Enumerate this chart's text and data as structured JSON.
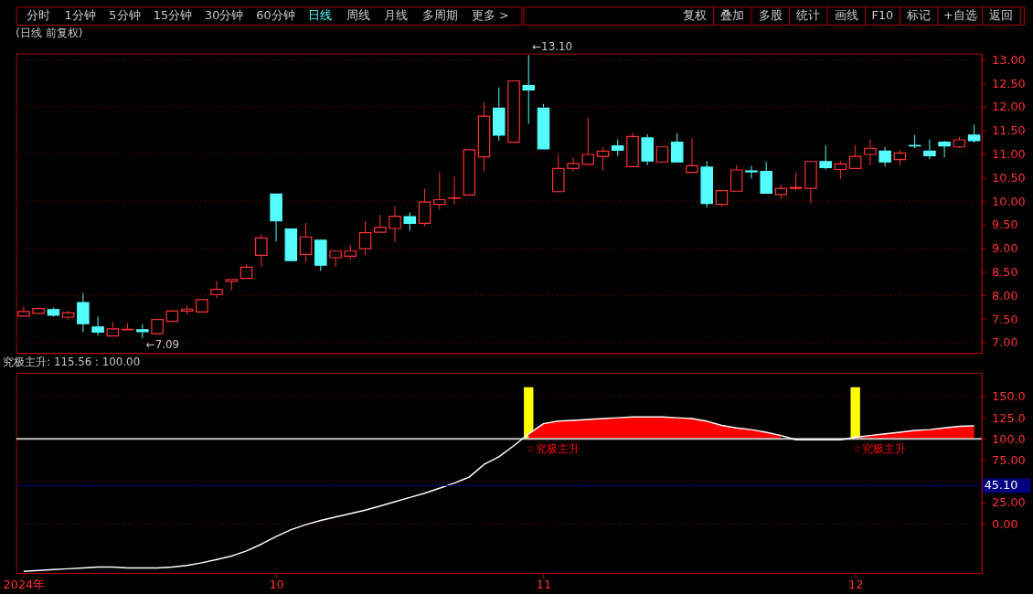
{
  "chart_data": [
    {
      "type": "other",
      "categories": [
        "分时",
        "1分钟",
        "5分钟",
        "15分钟",
        "30分钟",
        "60分钟",
        "日线",
        "周线",
        "月线",
        "多周期",
        "更多 >"
      ],
      "colors": [
        "#c8c8c8",
        "#c8c8c8",
        "#c8c8c8",
        "#c8c8c8",
        "#c8c8c8",
        "#c8c8c8",
        "#54fcfc",
        "#c8c8c8",
        "#c8c8c8",
        "#c8c8c8",
        "#c8c8c8"
      ]
    },
    {
      "type": "other",
      "categories": [
        "复权",
        "叠加",
        "多股",
        "统计",
        "画线",
        "F10",
        "标记",
        "+自选",
        "返回"
      ],
      "colors": [
        "#c8c8c8",
        "#c8c8c8",
        "#c8c8c8",
        "#c8c8c8",
        "#c8c8c8",
        "#c8c8c8",
        "#c8c8c8",
        "#c8c8c8",
        "#c8c8c8"
      ]
    },
    {
      "type": "candlestick",
      "title": "(日线 前复权)",
      "ohlc": [
        [
          7.56,
          7.77,
          7.56,
          7.66
        ],
        [
          7.62,
          7.74,
          7.62,
          7.72
        ],
        [
          7.7,
          7.74,
          7.55,
          7.58
        ],
        [
          7.54,
          7.67,
          7.48,
          7.63
        ],
        [
          7.85,
          8.05,
          7.22,
          7.4
        ],
        [
          7.33,
          7.55,
          7.15,
          7.22
        ],
        [
          7.14,
          7.44,
          7.14,
          7.29
        ],
        [
          7.27,
          7.41,
          7.27,
          7.28
        ],
        [
          7.27,
          7.39,
          7.09,
          7.23
        ],
        [
          7.19,
          7.49,
          7.19,
          7.49
        ],
        [
          7.45,
          7.69,
          7.45,
          7.67
        ],
        [
          7.67,
          7.79,
          7.59,
          7.71
        ],
        [
          7.65,
          7.91,
          7.65,
          7.91
        ],
        [
          8.02,
          8.31,
          7.94,
          8.13
        ],
        [
          8.3,
          8.34,
          8.11,
          8.34
        ],
        [
          8.36,
          8.66,
          8.36,
          8.6
        ],
        [
          8.85,
          9.3,
          8.61,
          9.22
        ],
        [
          10.15,
          10.15,
          9.14,
          9.58
        ],
        [
          9.41,
          9.41,
          8.72,
          8.74
        ],
        [
          8.87,
          9.54,
          8.7,
          9.24
        ],
        [
          9.17,
          9.17,
          8.52,
          8.64
        ],
        [
          8.8,
          8.94,
          8.61,
          8.94
        ],
        [
          8.83,
          9.07,
          8.75,
          8.94
        ],
        [
          8.99,
          9.58,
          8.85,
          9.33
        ],
        [
          9.34,
          9.71,
          9.34,
          9.44
        ],
        [
          9.42,
          9.89,
          9.13,
          9.68
        ],
        [
          9.67,
          9.76,
          9.37,
          9.53
        ],
        [
          9.53,
          10.26,
          9.47,
          9.98
        ],
        [
          9.93,
          10.61,
          9.82,
          10.03
        ],
        [
          10.06,
          10.52,
          9.93,
          10.07
        ],
        [
          10.13,
          11.09,
          10.12,
          11.09
        ],
        [
          10.94,
          12.1,
          10.63,
          11.8
        ],
        [
          11.97,
          12.41,
          11.28,
          11.4
        ],
        [
          11.25,
          12.55,
          11.25,
          12.55
        ],
        [
          12.45,
          13.1,
          11.64,
          12.36
        ],
        [
          11.97,
          12.06,
          11.11,
          11.11
        ],
        [
          10.2,
          10.98,
          10.2,
          10.69
        ],
        [
          10.69,
          10.92,
          10.63,
          10.8
        ],
        [
          10.78,
          11.77,
          10.78,
          10.99
        ],
        [
          10.95,
          11.14,
          10.65,
          11.06
        ],
        [
          11.17,
          11.31,
          10.96,
          11.08
        ],
        [
          10.73,
          11.45,
          10.73,
          11.37
        ],
        [
          11.34,
          11.42,
          10.76,
          10.85
        ],
        [
          10.83,
          11.15,
          10.82,
          11.15
        ],
        [
          11.25,
          11.44,
          10.82,
          10.83
        ],
        [
          10.61,
          11.33,
          10.61,
          10.75
        ],
        [
          10.72,
          10.85,
          9.86,
          9.95
        ],
        [
          9.93,
          10.22,
          9.88,
          10.22
        ],
        [
          10.21,
          10.77,
          10.21,
          10.66
        ],
        [
          10.64,
          10.75,
          10.48,
          10.62
        ],
        [
          10.63,
          10.83,
          10.17,
          10.17
        ],
        [
          10.14,
          10.35,
          10.04,
          10.27
        ],
        [
          10.27,
          10.61,
          10.23,
          10.29
        ],
        [
          10.27,
          10.84,
          9.95,
          10.84
        ],
        [
          10.84,
          11.18,
          10.67,
          10.71
        ],
        [
          10.67,
          10.85,
          10.47,
          10.79
        ],
        [
          10.69,
          11.19,
          10.69,
          10.95
        ],
        [
          10.99,
          11.31,
          10.76,
          11.12
        ],
        [
          11.06,
          11.15,
          10.74,
          10.83
        ],
        [
          10.88,
          11.09,
          10.76,
          11.02
        ],
        [
          11.18,
          11.4,
          11.12,
          11.17
        ],
        [
          11.06,
          11.31,
          10.89,
          10.96
        ],
        [
          11.25,
          11.28,
          10.93,
          11.17
        ],
        [
          11.15,
          11.36,
          11.12,
          11.3
        ],
        [
          11.4,
          11.62,
          11.24,
          11.28
        ]
      ],
      "colors": [
        "#ff3232",
        "#ff3232",
        "#54fcfc",
        "#ff3232",
        "#54fcfc",
        "#54fcfc",
        "#ff3232",
        "#ff3232",
        "#54fcfc",
        "#ff3232",
        "#ff3232",
        "#ff3232",
        "#ff3232",
        "#ff3232",
        "#ff3232",
        "#ff3232",
        "#ff3232",
        "#54fcfc",
        "#54fcfc",
        "#ff3232",
        "#54fcfc",
        "#ff3232",
        "#ff3232",
        "#ff3232",
        "#ff3232",
        "#ff3232",
        "#54fcfc",
        "#ff3232",
        "#ff3232",
        "#ff3232",
        "#ff3232",
        "#ff3232",
        "#54fcfc",
        "#ff3232",
        "#54fcfc",
        "#54fcfc",
        "#ff3232",
        "#ff3232",
        "#ff3232",
        "#ff3232",
        "#54fcfc",
        "#ff3232",
        "#54fcfc",
        "#ff3232",
        "#54fcfc",
        "#ff3232",
        "#54fcfc",
        "#ff3232",
        "#ff3232",
        "#54fcfc",
        "#54fcfc",
        "#ff3232",
        "#ff3232",
        "#ff3232",
        "#54fcfc",
        "#ff3232",
        "#ff3232",
        "#ff3232",
        "#54fcfc",
        "#ff3232",
        "#54fcfc",
        "#54fcfc",
        "#54fcfc",
        "#ff3232",
        "#54fcfc"
      ],
      "ylim": [
        6.78,
        13.13
      ],
      "yticks": [
        {
          "value": 7,
          "label": "7.00"
        },
        {
          "value": 7.5,
          "label": "7.50"
        },
        {
          "value": 8,
          "label": "8.00"
        },
        {
          "value": 8.5,
          "label": "8.50"
        },
        {
          "value": 9,
          "label": "9.00"
        },
        {
          "value": 9.5,
          "label": "9.50"
        },
        {
          "value": 10,
          "label": "10.00"
        },
        {
          "value": 10.5,
          "label": "10.50"
        },
        {
          "value": 11,
          "label": "11.00"
        },
        {
          "value": 11.5,
          "label": "11.50"
        },
        {
          "value": 12,
          "label": "12.00"
        },
        {
          "value": 12.5,
          "label": "12.50"
        },
        {
          "value": 13,
          "label": "13.00"
        }
      ],
      "grid": "y",
      "tick_labels": "y",
      "annotations": [
        "←7.09",
        "←13.10"
      ]
    },
    {
      "type": "line",
      "title": "究极主升: 115.56 : 100.00",
      "categories": [
        "2024年",
        null,
        null,
        null,
        null,
        null,
        null,
        null,
        null,
        null,
        null,
        null,
        null,
        null,
        null,
        null,
        null,
        "10",
        null,
        null,
        null,
        null,
        null,
        null,
        null,
        null,
        null,
        null,
        null,
        null,
        null,
        null,
        null,
        null,
        null,
        "11",
        null,
        null,
        null,
        null,
        null,
        null,
        null,
        null,
        null,
        null,
        null,
        null,
        null,
        null,
        null,
        null,
        null,
        null,
        null,
        null,
        "12",
        null,
        null,
        null,
        null,
        null,
        null,
        null,
        null
      ],
      "series": [
        {
          "type": "line",
          "color": "#ffffff",
          "values": [
            -56,
            -55,
            -54,
            -53,
            -52,
            -51,
            -51,
            -52,
            -52,
            -52,
            -51,
            -49,
            -46,
            -42,
            -38,
            -32,
            -24,
            -15,
            -7,
            -1,
            4,
            8,
            12,
            16,
            21,
            26,
            31,
            36,
            42,
            48,
            55,
            70,
            79,
            92,
            106,
            118,
            121,
            122,
            123,
            124,
            125,
            126,
            126,
            126,
            125,
            124,
            121,
            116,
            113,
            111,
            108,
            104,
            99,
            99,
            99,
            99,
            102,
            104,
            106,
            108,
            110,
            111,
            113,
            115,
            115.56
          ]
        },
        {
          "type": "area",
          "color": "#ff0000",
          "values": [
            null,
            null,
            null,
            null,
            null,
            null,
            null,
            null,
            null,
            null,
            null,
            null,
            null,
            null,
            null,
            null,
            null,
            null,
            null,
            null,
            null,
            null,
            null,
            null,
            null,
            null,
            null,
            null,
            null,
            null,
            null,
            null,
            null,
            null,
            106,
            118,
            121,
            122,
            123,
            124,
            125,
            126,
            126,
            126,
            125,
            124,
            121,
            116,
            113,
            111,
            108,
            104,
            null,
            null,
            null,
            null,
            102,
            104,
            106,
            108,
            110,
            111,
            113,
            115,
            115.56
          ]
        },
        {
          "type": "bar",
          "color": "#ffff00",
          "values": [
            null,
            null,
            null,
            null,
            null,
            null,
            null,
            null,
            null,
            null,
            null,
            null,
            null,
            null,
            null,
            null,
            null,
            null,
            null,
            null,
            null,
            null,
            null,
            null,
            null,
            null,
            null,
            null,
            null,
            null,
            null,
            null,
            null,
            null,
            61,
            null,
            null,
            null,
            null,
            null,
            null,
            null,
            null,
            null,
            null,
            null,
            null,
            null,
            null,
            null,
            null,
            null,
            null,
            null,
            null,
            null,
            61,
            null,
            null,
            null,
            null,
            null,
            null,
            null,
            null
          ],
          "base": [
            null,
            null,
            null,
            null,
            null,
            null,
            null,
            null,
            null,
            null,
            null,
            null,
            null,
            null,
            null,
            null,
            null,
            null,
            null,
            null,
            null,
            null,
            null,
            null,
            null,
            null,
            null,
            null,
            null,
            null,
            null,
            null,
            null,
            null,
            100,
            null,
            null,
            null,
            null,
            null,
            null,
            null,
            null,
            null,
            null,
            null,
            null,
            null,
            null,
            null,
            null,
            null,
            null,
            null,
            null,
            null,
            100,
            null,
            null,
            null,
            null,
            null,
            null,
            null,
            null
          ]
        }
      ],
      "ref_lines": [
        {
          "axis": "y",
          "value": 100,
          "color": "#c0c0c0"
        },
        {
          "axis": "y",
          "value": 45.1,
          "label": "45.10",
          "color": "#000080"
        }
      ],
      "ylim": [
        -58,
        178
      ],
      "yticks": [
        {
          "value": 0,
          "label": "0.00"
        },
        {
          "value": 25,
          "label": "25.00"
        },
        {
          "value": 50,
          "label": null
        },
        {
          "value": 75,
          "label": "75.00"
        },
        {
          "value": 100,
          "label": "100.0"
        },
        {
          "value": 125,
          "label": "125.0"
        },
        {
          "value": 150,
          "label": "150.0"
        }
      ],
      "grid": "y",
      "annotations": [
        "☆究极主升",
        "☆究极主升"
      ]
    }
  ]
}
